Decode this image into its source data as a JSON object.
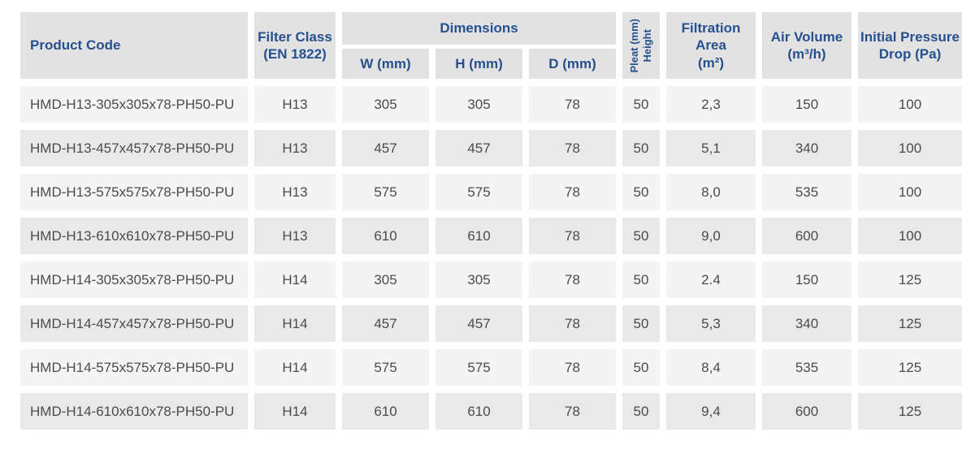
{
  "colors": {
    "header_bg": "#e2e2e2",
    "header_text": "#27508f",
    "body_text": "#4b4b4b",
    "row_light": "#f4f4f4",
    "row_dark": "#e9e9e9",
    "page_background": "#ffffff"
  },
  "table": {
    "headers": {
      "product_code": "Product Code",
      "filter_class_line1": "Filter Class",
      "filter_class_line2": "(EN 1822)",
      "dimensions_group": "Dimensions",
      "w": "W (mm)",
      "h": "H (mm)",
      "d": "D (mm)",
      "pleat_line1": "Pleat (mm)",
      "pleat_line2": "Height",
      "filtration_line1": "Filtration",
      "filtration_line2": "Area",
      "filtration_line3": "(m²)",
      "air_volume_line1": "Air Volume",
      "air_volume_line2": "(m³/h)",
      "pressure_line1": "Initial Pressure",
      "pressure_line2": "Drop (Pa)"
    },
    "rows": [
      {
        "code": "HMD-H13-305x305x78-PH50-PU",
        "filter_class": "H13",
        "w": "305",
        "h": "305",
        "d": "78",
        "pleat_height": "50",
        "filtration_area": "2,3",
        "air_volume": "150",
        "pressure_drop": "100"
      },
      {
        "code": "HMD-H13-457x457x78-PH50-PU",
        "filter_class": "H13",
        "w": "457",
        "h": "457",
        "d": "78",
        "pleat_height": "50",
        "filtration_area": "5,1",
        "air_volume": "340",
        "pressure_drop": "100"
      },
      {
        "code": "HMD-H13-575x575x78-PH50-PU",
        "filter_class": "H13",
        "w": "575",
        "h": "575",
        "d": "78",
        "pleat_height": "50",
        "filtration_area": "8,0",
        "air_volume": "535",
        "pressure_drop": "100"
      },
      {
        "code": "HMD-H13-610x610x78-PH50-PU",
        "filter_class": "H13",
        "w": "610",
        "h": "610",
        "d": "78",
        "pleat_height": "50",
        "filtration_area": "9,0",
        "air_volume": "600",
        "pressure_drop": "100"
      },
      {
        "code": "HMD-H14-305x305x78-PH50-PU",
        "filter_class": "H14",
        "w": "305",
        "h": "305",
        "d": "78",
        "pleat_height": "50",
        "filtration_area": "2.4",
        "air_volume": "150",
        "pressure_drop": "125"
      },
      {
        "code": "HMD-H14-457x457x78-PH50-PU",
        "filter_class": "H14",
        "w": "457",
        "h": "457",
        "d": "78",
        "pleat_height": "50",
        "filtration_area": "5,3",
        "air_volume": "340",
        "pressure_drop": "125"
      },
      {
        "code": "HMD-H14-575x575x78-PH50-PU",
        "filter_class": "H14",
        "w": "575",
        "h": "575",
        "d": "78",
        "pleat_height": "50",
        "filtration_area": "8,4",
        "air_volume": "535",
        "pressure_drop": "125"
      },
      {
        "code": "HMD-H14-610x610x78-PH50-PU",
        "filter_class": "H14",
        "w": "610",
        "h": "610",
        "d": "78",
        "pleat_height": "50",
        "filtration_area": "9,4",
        "air_volume": "600",
        "pressure_drop": "125"
      }
    ]
  }
}
